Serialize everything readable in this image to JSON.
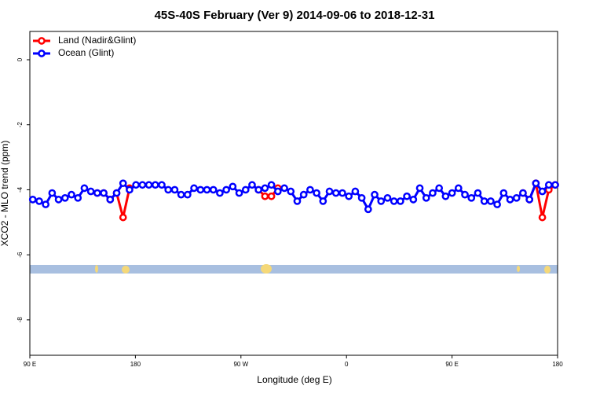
{
  "chart_data": {
    "type": "line",
    "title": "45S-40S February (Ver 9)   2014-09-06 to 2018-12-31",
    "x_label": "Longitude (deg E)",
    "y_label": "XCO2 - MLO trend (ppm)",
    "xlim": [
      90,
      540
    ],
    "xticks": [
      {
        "value": 90,
        "label": "90 E"
      },
      {
        "value": 180,
        "label": "180"
      },
      {
        "value": 270,
        "label": "90 W"
      },
      {
        "value": 360,
        "label": "0"
      },
      {
        "value": 450,
        "label": "90 E"
      },
      {
        "value": 540,
        "label": "180"
      }
    ],
    "ylim": [
      -9.09,
      0.87
    ],
    "yticks": [
      0,
      -2,
      -4,
      -6,
      -8
    ],
    "legend": "top-left",
    "x": [
      92.5,
      98,
      103.5,
      109,
      114.5,
      120,
      125.5,
      131,
      136.5,
      142,
      147.5,
      153,
      158.5,
      164,
      169.5,
      175,
      180.5,
      186,
      191.5,
      197,
      202.5,
      208,
      213.5,
      219,
      224.5,
      230,
      235.5,
      241,
      246.5,
      252,
      257.5,
      263,
      268.5,
      274,
      279.5,
      285,
      290.5,
      296,
      301.5,
      307,
      312.5,
      318,
      323.5,
      329,
      334.5,
      340,
      345.5,
      351,
      356.5,
      362,
      367.5,
      373,
      378.5,
      384,
      389.5,
      395,
      400.5,
      406,
      411.5,
      417,
      422.5,
      428,
      433.5,
      439,
      444.5,
      450,
      455.5,
      461,
      466.5,
      472,
      477.5,
      483,
      488.5,
      494,
      499.5,
      505,
      510.5,
      516,
      521.5,
      527,
      532.5,
      538
    ],
    "series": [
      {
        "name": "Land (Nadir&Glint)",
        "color": "#ff0000",
        "values": [
          null,
          null,
          null,
          null,
          null,
          null,
          null,
          null,
          null,
          null,
          -4.1,
          -4.1,
          -4.3,
          -4.1,
          -4.85,
          -3.95,
          null,
          null,
          null,
          null,
          null,
          null,
          null,
          null,
          null,
          null,
          null,
          null,
          null,
          null,
          null,
          null,
          null,
          null,
          null,
          -4.0,
          -4.2,
          -4.2,
          -3.95,
          null,
          null,
          null,
          null,
          null,
          null,
          null,
          null,
          null,
          null,
          null,
          null,
          null,
          null,
          null,
          null,
          null,
          null,
          null,
          null,
          null,
          null,
          null,
          null,
          null,
          null,
          null,
          null,
          null,
          null,
          null,
          null,
          null,
          null,
          null,
          null,
          null,
          -4.1,
          -4.3,
          -3.8,
          -4.85,
          -4.0,
          -3.85
        ]
      },
      {
        "name": "Ocean (Glint)",
        "color": "#0000ff",
        "values": [
          -4.3,
          -4.35,
          -4.45,
          -4.1,
          -4.3,
          -4.25,
          -4.15,
          -4.25,
          -3.95,
          -4.05,
          -4.1,
          -4.1,
          -4.3,
          -4.1,
          -3.8,
          -4.0,
          -3.85,
          -3.85,
          -3.85,
          -3.85,
          -3.85,
          -4.0,
          -4.0,
          -4.15,
          -4.15,
          -3.95,
          -4.0,
          -4.0,
          -4.0,
          -4.1,
          -4.0,
          -3.9,
          -4.1,
          -4.0,
          -3.85,
          -4.0,
          -3.95,
          -3.85,
          -4.05,
          -3.95,
          -4.05,
          -4.35,
          -4.15,
          -4.0,
          -4.1,
          -4.35,
          -4.05,
          -4.1,
          -4.1,
          -4.2,
          -4.05,
          -4.25,
          -4.6,
          -4.15,
          -4.35,
          -4.25,
          -4.35,
          -4.35,
          -4.2,
          -4.3,
          -3.95,
          -4.25,
          -4.1,
          -3.95,
          -4.2,
          -4.1,
          -3.95,
          -4.15,
          -4.25,
          -4.1,
          -4.35,
          -4.35,
          -4.45,
          -4.1,
          -4.3,
          -4.25,
          -4.1,
          -4.3,
          -3.8,
          -4.05,
          -3.85,
          -3.85
        ]
      }
    ]
  }
}
